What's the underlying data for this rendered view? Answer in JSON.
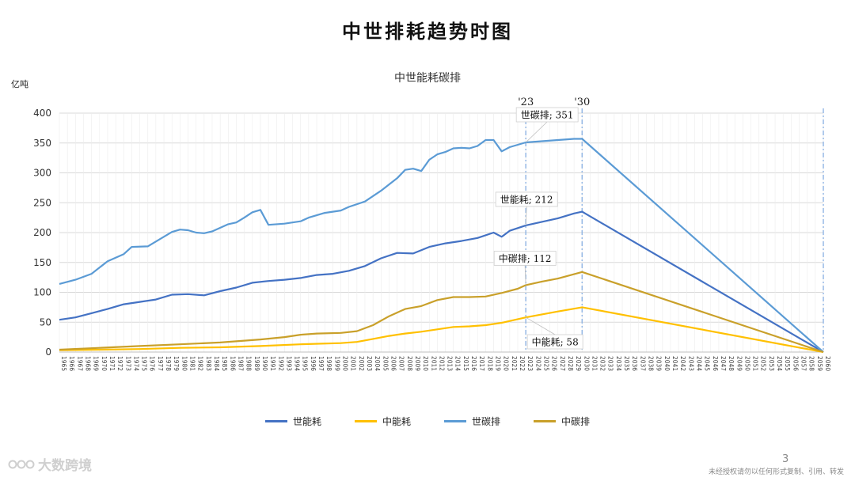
{
  "page": {
    "title": "中世排耗趋势时图",
    "page_number": "3",
    "footer_note": "未经授权请勿以任何形式复制、引用、转发",
    "brand": "大数跨境"
  },
  "colors": {
    "world_energy": "#4472C4",
    "china_energy": "#FFC000",
    "world_carbon": "#5B9BD5",
    "china_carbon": "#C9A02A"
  },
  "chart_data": {
    "type": "line",
    "title": "中世能耗碳排",
    "ylabel": "亿吨",
    "ylim": [
      0,
      400
    ],
    "yticks": [
      0,
      50,
      100,
      150,
      200,
      250,
      300,
      350,
      400
    ],
    "xlim": [
      1965,
      2060
    ],
    "x_tick_step": 1,
    "grid": true,
    "legend_position": "bottom",
    "markers": [
      {
        "x": 2023,
        "label": "'23"
      },
      {
        "x": 2030,
        "label": "'30"
      },
      {
        "x": 2060,
        "label": ""
      }
    ],
    "annotations": [
      {
        "text": "世碳排; 351",
        "series": "世碳排",
        "x": 2023,
        "y": 351
      },
      {
        "text": "世能耗; 212",
        "series": "世能耗",
        "x": 2023,
        "y": 212
      },
      {
        "text": "中碳排; 112",
        "series": "中碳排",
        "x": 2023,
        "y": 112
      },
      {
        "text": "中能耗; 58",
        "series": "中能耗",
        "x": 2023,
        "y": 58
      }
    ],
    "legend": [
      "世能耗",
      "中能耗",
      "世碳排",
      "中碳排"
    ],
    "series": [
      {
        "name": "世能耗",
        "color_key": "world_energy",
        "points": [
          [
            1965,
            54
          ],
          [
            1967,
            58
          ],
          [
            1969,
            65
          ],
          [
            1971,
            72
          ],
          [
            1973,
            80
          ],
          [
            1975,
            84
          ],
          [
            1977,
            88
          ],
          [
            1979,
            96
          ],
          [
            1981,
            97
          ],
          [
            1983,
            95
          ],
          [
            1985,
            102
          ],
          [
            1987,
            108
          ],
          [
            1989,
            116
          ],
          [
            1991,
            119
          ],
          [
            1993,
            121
          ],
          [
            1995,
            124
          ],
          [
            1997,
            129
          ],
          [
            1999,
            131
          ],
          [
            2001,
            136
          ],
          [
            2003,
            144
          ],
          [
            2005,
            157
          ],
          [
            2007,
            166
          ],
          [
            2009,
            165
          ],
          [
            2011,
            176
          ],
          [
            2013,
            182
          ],
          [
            2015,
            186
          ],
          [
            2017,
            191
          ],
          [
            2019,
            200
          ],
          [
            2020,
            193
          ],
          [
            2021,
            203
          ],
          [
            2023,
            212
          ],
          [
            2025,
            218
          ],
          [
            2027,
            224
          ],
          [
            2029,
            232
          ],
          [
            2030,
            235
          ],
          [
            2060,
            0
          ]
        ]
      },
      {
        "name": "中能耗",
        "color_key": "china_energy",
        "points": [
          [
            1965,
            3
          ],
          [
            1970,
            4
          ],
          [
            1975,
            5
          ],
          [
            1980,
            7
          ],
          [
            1985,
            8
          ],
          [
            1990,
            10
          ],
          [
            1995,
            13
          ],
          [
            2000,
            15
          ],
          [
            2002,
            17
          ],
          [
            2004,
            22
          ],
          [
            2006,
            27
          ],
          [
            2008,
            31
          ],
          [
            2010,
            34
          ],
          [
            2012,
            38
          ],
          [
            2014,
            42
          ],
          [
            2016,
            43
          ],
          [
            2018,
            45
          ],
          [
            2020,
            49
          ],
          [
            2023,
            58
          ],
          [
            2025,
            63
          ],
          [
            2027,
            68
          ],
          [
            2030,
            75
          ],
          [
            2060,
            0
          ]
        ]
      },
      {
        "name": "世碳排",
        "color_key": "world_carbon",
        "points": [
          [
            1965,
            114
          ],
          [
            1967,
            121
          ],
          [
            1969,
            131
          ],
          [
            1971,
            152
          ],
          [
            1973,
            164
          ],
          [
            1974,
            176
          ],
          [
            1976,
            177
          ],
          [
            1977,
            185
          ],
          [
            1979,
            201
          ],
          [
            1980,
            205
          ],
          [
            1981,
            204
          ],
          [
            1982,
            200
          ],
          [
            1983,
            199
          ],
          [
            1984,
            202
          ],
          [
            1986,
            214
          ],
          [
            1987,
            217
          ],
          [
            1988,
            225
          ],
          [
            1989,
            234
          ],
          [
            1990,
            238
          ],
          [
            1991,
            213
          ],
          [
            1993,
            215
          ],
          [
            1995,
            219
          ],
          [
            1996,
            225
          ],
          [
            1998,
            233
          ],
          [
            2000,
            237
          ],
          [
            2001,
            243
          ],
          [
            2003,
            252
          ],
          [
            2005,
            270
          ],
          [
            2007,
            291
          ],
          [
            2008,
            305
          ],
          [
            2009,
            307
          ],
          [
            2010,
            303
          ],
          [
            2011,
            322
          ],
          [
            2012,
            331
          ],
          [
            2013,
            335
          ],
          [
            2014,
            341
          ],
          [
            2015,
            342
          ],
          [
            2016,
            341
          ],
          [
            2017,
            345
          ],
          [
            2018,
            355
          ],
          [
            2019,
            355
          ],
          [
            2020,
            336
          ],
          [
            2021,
            343
          ],
          [
            2023,
            351
          ],
          [
            2025,
            353
          ],
          [
            2027,
            355
          ],
          [
            2029,
            357
          ],
          [
            2030,
            357
          ],
          [
            2060,
            0
          ]
        ]
      },
      {
        "name": "中碳排",
        "color_key": "china_carbon",
        "points": [
          [
            1965,
            4
          ],
          [
            1970,
            7
          ],
          [
            1975,
            10
          ],
          [
            1980,
            13
          ],
          [
            1985,
            16
          ],
          [
            1990,
            21
          ],
          [
            1993,
            25
          ],
          [
            1995,
            29
          ],
          [
            1997,
            31
          ],
          [
            2000,
            32
          ],
          [
            2002,
            35
          ],
          [
            2004,
            45
          ],
          [
            2006,
            60
          ],
          [
            2008,
            72
          ],
          [
            2010,
            77
          ],
          [
            2012,
            87
          ],
          [
            2014,
            92
          ],
          [
            2016,
            92
          ],
          [
            2018,
            93
          ],
          [
            2020,
            99
          ],
          [
            2022,
            106
          ],
          [
            2023,
            112
          ],
          [
            2025,
            118
          ],
          [
            2027,
            123
          ],
          [
            2030,
            134
          ],
          [
            2060,
            0
          ]
        ]
      }
    ]
  }
}
